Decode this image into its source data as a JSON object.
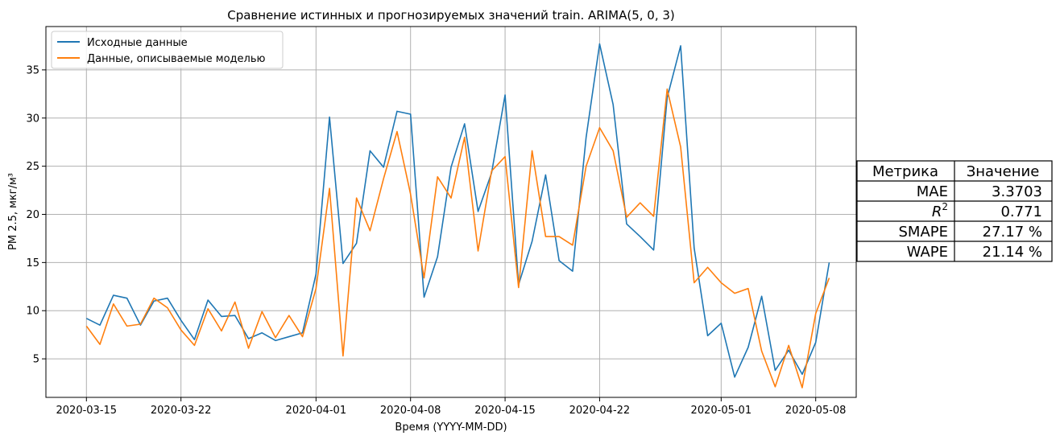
{
  "chart_data": {
    "type": "line",
    "title": "Сравнение истинных и прогнозируемых значений train. ARIMA(5, 0, 3)",
    "xlabel": "Время (YYYY-MM-DD)",
    "ylabel": "PM 2.5, мкг/м³",
    "x_ticks": [
      "2020-03-15",
      "2020-03-22",
      "2020-04-01",
      "2020-04-08",
      "2020-04-15",
      "2020-04-22",
      "2020-05-01",
      "2020-05-08"
    ],
    "y_ticks": [
      5,
      10,
      15,
      20,
      25,
      30,
      35
    ],
    "xlim": [
      "2020-03-12",
      "2020-05-11"
    ],
    "ylim": [
      1.0,
      39.5
    ],
    "grid": true,
    "legend": "top-left",
    "x": [
      "2020-03-15",
      "2020-03-16",
      "2020-03-17",
      "2020-03-18",
      "2020-03-19",
      "2020-03-20",
      "2020-03-21",
      "2020-03-22",
      "2020-03-23",
      "2020-03-24",
      "2020-03-25",
      "2020-03-26",
      "2020-03-27",
      "2020-03-28",
      "2020-03-29",
      "2020-03-30",
      "2020-03-31",
      "2020-04-01",
      "2020-04-02",
      "2020-04-03",
      "2020-04-04",
      "2020-04-05",
      "2020-04-06",
      "2020-04-07",
      "2020-04-08",
      "2020-04-09",
      "2020-04-10",
      "2020-04-11",
      "2020-04-12",
      "2020-04-13",
      "2020-04-14",
      "2020-04-15",
      "2020-04-16",
      "2020-04-17",
      "2020-04-18",
      "2020-04-19",
      "2020-04-20",
      "2020-04-21",
      "2020-04-22",
      "2020-04-23",
      "2020-04-24",
      "2020-04-25",
      "2020-04-26",
      "2020-04-27",
      "2020-04-28",
      "2020-04-29",
      "2020-04-30",
      "2020-05-01",
      "2020-05-02",
      "2020-05-03",
      "2020-05-04",
      "2020-05-05",
      "2020-05-06",
      "2020-05-07",
      "2020-05-08",
      "2020-05-09"
    ],
    "series": [
      {
        "name": "Исходные данные",
        "color": "#1f77b4",
        "values": [
          9.2,
          8.5,
          11.6,
          11.3,
          8.5,
          11.0,
          11.3,
          9.0,
          7.0,
          11.1,
          9.4,
          9.5,
          7.1,
          7.7,
          6.9,
          7.3,
          7.7,
          13.8,
          30.1,
          14.9,
          17.0,
          26.6,
          24.9,
          30.7,
          30.4,
          11.4,
          15.6,
          24.9,
          29.4,
          20.3,
          24.3,
          32.4,
          12.7,
          17.2,
          24.1,
          15.2,
          14.1,
          28.0,
          37.7,
          31.4,
          19.0,
          17.7,
          16.3,
          32.1,
          37.5,
          16.5,
          7.4,
          8.7,
          3.1,
          6.2,
          11.5,
          3.8,
          5.9,
          3.4,
          6.7,
          15.0
        ]
      },
      {
        "name": "Данные, описываемые моделью",
        "color": "#ff7f0e",
        "values": [
          8.4,
          6.5,
          10.7,
          8.4,
          8.6,
          11.3,
          10.3,
          8.0,
          6.4,
          10.2,
          7.9,
          10.9,
          6.1,
          9.9,
          7.2,
          9.5,
          7.3,
          12.3,
          22.7,
          5.3,
          21.7,
          18.3,
          23.7,
          28.6,
          22.1,
          13.4,
          23.9,
          21.7,
          28.0,
          16.2,
          24.5,
          26.0,
          12.4,
          26.6,
          17.7,
          17.7,
          16.8,
          25.0,
          29.0,
          26.6,
          19.7,
          21.2,
          19.8,
          33.0,
          27.0,
          12.9,
          14.5,
          12.9,
          11.8,
          12.3,
          5.8,
          2.1,
          6.4,
          2.0,
          9.7,
          13.4
        ]
      }
    ]
  },
  "metrics_table": {
    "headers": [
      "Метрика",
      "Значение"
    ],
    "rows": [
      {
        "metric": "MAE",
        "value": "3.3703"
      },
      {
        "metric": "R",
        "sup": "2",
        "value": "0.771"
      },
      {
        "metric": "SMAPE",
        "value": "27.17 %"
      },
      {
        "metric": "WAPE",
        "value": "21.14 %"
      }
    ]
  }
}
